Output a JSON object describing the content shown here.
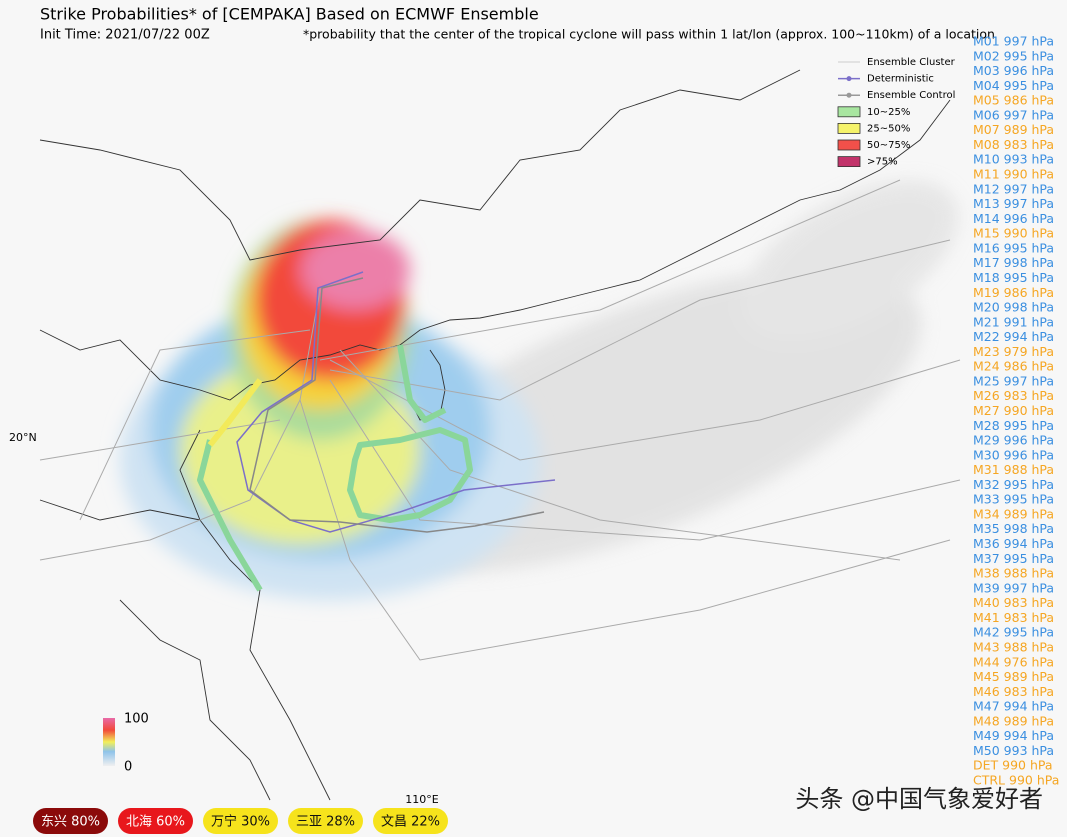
{
  "header": {
    "title": "Strike Probabilities* of [CEMPAKA] Based on ECMWF Ensemble",
    "init_time": "Init Time: 2021/07/22 00Z",
    "footnote": "*probability that the center of the tropical cyclone will pass within 1 lat/lon (approx. 100~110km) of a location"
  },
  "legend": {
    "items": [
      "Ensemble Cluster",
      "Deterministic",
      "Ensemble Control",
      "10~25%",
      "25~50%",
      "50~75%",
      ">75%"
    ]
  },
  "colorbar": {
    "max": "100",
    "min": "0"
  },
  "axes": {
    "lat_label": "20°N",
    "lon_label": "110°E"
  },
  "members": [
    {
      "text": "M01 997 hPa",
      "color": "#3b8fe0"
    },
    {
      "text": "M02 995 hPa",
      "color": "#3b8fe0"
    },
    {
      "text": "M03 996 hPa",
      "color": "#3b8fe0"
    },
    {
      "text": "M04 995 hPa",
      "color": "#3b8fe0"
    },
    {
      "text": "M05 986 hPa",
      "color": "#f5a623"
    },
    {
      "text": "M06 997 hPa",
      "color": "#3b8fe0"
    },
    {
      "text": "M07 989 hPa",
      "color": "#f5a623"
    },
    {
      "text": "M08 983 hPa",
      "color": "#f5a623"
    },
    {
      "text": "M10 993 hPa",
      "color": "#3b8fe0"
    },
    {
      "text": "M11 990 hPa",
      "color": "#f5a623"
    },
    {
      "text": "M12 997 hPa",
      "color": "#3b8fe0"
    },
    {
      "text": "M13 997 hPa",
      "color": "#3b8fe0"
    },
    {
      "text": "M14 996 hPa",
      "color": "#3b8fe0"
    },
    {
      "text": "M15 990 hPa",
      "color": "#f5a623"
    },
    {
      "text": "M16 995 hPa",
      "color": "#3b8fe0"
    },
    {
      "text": "M17 998 hPa",
      "color": "#3b8fe0"
    },
    {
      "text": "M18 995 hPa",
      "color": "#3b8fe0"
    },
    {
      "text": "M19 986 hPa",
      "color": "#f5a623"
    },
    {
      "text": "M20 998 hPa",
      "color": "#3b8fe0"
    },
    {
      "text": "M21 991 hPa",
      "color": "#3b8fe0"
    },
    {
      "text": "M22 994 hPa",
      "color": "#3b8fe0"
    },
    {
      "text": "M23 979 hPa",
      "color": "#f5a623"
    },
    {
      "text": "M24 986 hPa",
      "color": "#f5a623"
    },
    {
      "text": "M25 997 hPa",
      "color": "#3b8fe0"
    },
    {
      "text": "M26 983 hPa",
      "color": "#f5a623"
    },
    {
      "text": "M27 990 hPa",
      "color": "#f5a623"
    },
    {
      "text": "M28 995 hPa",
      "color": "#3b8fe0"
    },
    {
      "text": "M29 996 hPa",
      "color": "#3b8fe0"
    },
    {
      "text": "M30 996 hPa",
      "color": "#3b8fe0"
    },
    {
      "text": "M31 988 hPa",
      "color": "#f5a623"
    },
    {
      "text": "M32 995 hPa",
      "color": "#3b8fe0"
    },
    {
      "text": "M33 995 hPa",
      "color": "#3b8fe0"
    },
    {
      "text": "M34 989 hPa",
      "color": "#f5a623"
    },
    {
      "text": "M35 998 hPa",
      "color": "#3b8fe0"
    },
    {
      "text": "M36 994 hPa",
      "color": "#3b8fe0"
    },
    {
      "text": "M37 995 hPa",
      "color": "#3b8fe0"
    },
    {
      "text": "M38 988 hPa",
      "color": "#f5a623"
    },
    {
      "text": "M39 997 hPa",
      "color": "#3b8fe0"
    },
    {
      "text": "M40 983 hPa",
      "color": "#f5a623"
    },
    {
      "text": "M41 983 hPa",
      "color": "#f5a623"
    },
    {
      "text": "M42 995 hPa",
      "color": "#3b8fe0"
    },
    {
      "text": "M43 988 hPa",
      "color": "#f5a623"
    },
    {
      "text": "M44 976 hPa",
      "color": "#f5a623"
    },
    {
      "text": "M45 989 hPa",
      "color": "#f5a623"
    },
    {
      "text": "M46 983 hPa",
      "color": "#f5a623"
    },
    {
      "text": "M47 994 hPa",
      "color": "#3b8fe0"
    },
    {
      "text": "M48 989 hPa",
      "color": "#f5a623"
    },
    {
      "text": "M49 994 hPa",
      "color": "#3b8fe0"
    },
    {
      "text": "M50 993 hPa",
      "color": "#3b8fe0"
    },
    {
      "text": "DET 990 hPa",
      "color": "#f5a623"
    },
    {
      "text": "CTRL 990 hPa",
      "color": "#f5a623"
    }
  ],
  "badges": [
    {
      "text": "东兴  80%",
      "color": "#8b0a0a",
      "text_color": "#ffffff"
    },
    {
      "text": "北海  60%",
      "color": "#e8171c",
      "text_color": "#ffffff"
    },
    {
      "text": "万宁  30%",
      "color": "#f6e31c",
      "text_color": "#111111"
    },
    {
      "text": "三亚  28%",
      "color": "#f6e31c",
      "text_color": "#111111"
    },
    {
      "text": "文昌  22%",
      "color": "#f6e31c",
      "text_color": "#111111"
    }
  ],
  "watermark": "头条 @中国气象爱好者"
}
